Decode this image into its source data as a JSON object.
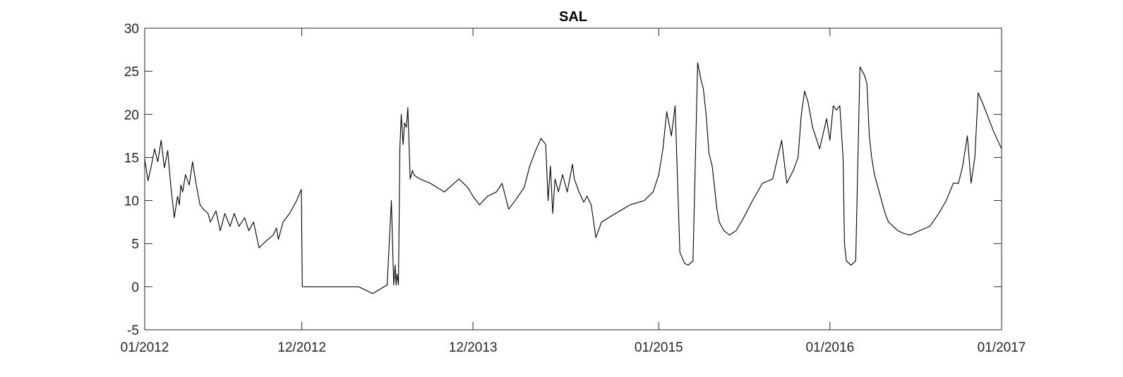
{
  "chart_data": {
    "type": "line",
    "title": "SAL",
    "xlabel": "",
    "ylabel": "",
    "xlim": [
      "2012-01-01",
      "2017-01-01"
    ],
    "ylim": [
      -5,
      30
    ],
    "grid": false,
    "legend": "none",
    "line_color": "#000000",
    "x_tick_labels": [
      "01/2012",
      "12/2012",
      "12/2013",
      "01/2015",
      "01/2016",
      "01/2017"
    ],
    "x_tick_dates": [
      "2012-01-01",
      "2012-12-01",
      "2013-12-01",
      "2015-01-01",
      "2016-01-01",
      "2017-01-01"
    ],
    "y_ticks": [
      -5,
      0,
      5,
      10,
      15,
      20,
      25,
      30
    ],
    "series": [
      {
        "x": [
          "2012-01-01",
          "2012-01-08",
          "2012-01-15",
          "2012-01-22",
          "2012-01-29",
          "2012-02-05",
          "2012-02-12",
          "2012-02-19",
          "2012-02-26",
          "2012-03-04",
          "2012-03-11",
          "2012-03-15",
          "2012-03-18",
          "2012-03-22",
          "2012-03-28",
          "2012-04-05",
          "2012-04-12",
          "2012-04-20",
          "2012-04-28",
          "2012-05-05",
          "2012-05-15",
          "2012-05-20",
          "2012-06-01",
          "2012-06-10",
          "2012-06-20",
          "2012-07-01",
          "2012-07-10",
          "2012-07-20",
          "2012-08-01",
          "2012-08-10",
          "2012-08-20",
          "2012-09-01",
          "2012-09-10",
          "2012-09-20",
          "2012-10-01",
          "2012-10-08",
          "2012-10-12",
          "2012-10-22",
          "2012-11-05",
          "2012-11-20",
          "2012-11-30",
          "2012-12-02",
          "2012-12-15",
          "2013-01-01",
          "2013-02-01",
          "2013-03-01",
          "2013-04-01",
          "2013-05-01",
          "2013-06-01",
          "2013-06-10",
          "2013-06-15",
          "2013-06-18",
          "2013-06-20",
          "2013-06-22",
          "2013-06-25",
          "2013-06-28",
          "2013-07-01",
          "2013-07-05",
          "2013-07-08",
          "2013-07-12",
          "2013-07-15",
          "2013-07-20",
          "2013-07-25",
          "2013-07-28",
          "2013-08-01",
          "2013-08-10",
          "2013-09-01",
          "2013-10-01",
          "2013-11-01",
          "2013-11-20",
          "2013-12-01",
          "2013-12-15",
          "2014-01-01",
          "2014-01-20",
          "2014-02-01",
          "2014-02-15",
          "2014-03-01",
          "2014-03-20",
          "2014-04-01",
          "2014-04-15",
          "2014-04-25",
          "2014-05-05",
          "2014-05-10",
          "2014-05-15",
          "2014-05-20",
          "2014-05-25",
          "2014-06-01",
          "2014-06-10",
          "2014-06-20",
          "2014-07-01",
          "2014-07-05",
          "2014-07-15",
          "2014-07-25",
          "2014-08-01",
          "2014-08-10",
          "2014-08-20",
          "2014-09-01",
          "2014-10-01",
          "2014-11-01",
          "2014-12-01",
          "2014-12-20",
          "2015-01-01",
          "2015-01-10",
          "2015-01-18",
          "2015-01-28",
          "2015-02-05",
          "2015-02-15",
          "2015-02-25",
          "2015-03-05",
          "2015-03-15",
          "2015-03-25",
          "2015-04-01",
          "2015-04-06",
          "2015-04-12",
          "2015-04-18",
          "2015-04-25",
          "2015-05-01",
          "2015-05-05",
          "2015-05-10",
          "2015-05-15",
          "2015-05-20",
          "2015-06-01",
          "2015-06-15",
          "2015-07-01",
          "2015-07-20",
          "2015-08-10",
          "2015-09-01",
          "2015-09-20",
          "2015-10-01",
          "2015-10-15",
          "2015-10-25",
          "2015-11-01",
          "2015-11-08",
          "2015-11-15",
          "2015-11-25",
          "2015-12-10",
          "2015-12-25",
          "2016-01-01",
          "2016-01-08",
          "2016-01-15",
          "2016-01-22",
          "2016-01-29",
          "2016-02-01",
          "2016-02-05",
          "2016-02-15",
          "2016-02-25",
          "2016-03-05",
          "2016-03-15",
          "2016-03-20",
          "2016-03-25",
          "2016-03-30",
          "2016-04-05",
          "2016-04-15",
          "2016-04-25",
          "2016-05-01",
          "2016-05-05",
          "2016-05-15",
          "2016-05-25",
          "2016-06-05",
          "2016-06-20",
          "2016-07-10",
          "2016-08-01",
          "2016-08-20",
          "2016-09-05",
          "2016-09-20",
          "2016-10-01",
          "2016-10-10",
          "2016-10-20",
          "2016-10-28",
          "2016-11-05",
          "2016-11-12",
          "2016-11-20",
          "2016-12-01",
          "2016-12-15",
          "2017-01-01"
        ],
        "y": [
          14.8,
          12.3,
          14,
          16,
          14.5,
          17,
          13.8,
          15.8,
          11.5,
          8,
          10.5,
          9.5,
          11.8,
          11,
          13,
          11.8,
          14.5,
          11.8,
          9.5,
          9,
          8.5,
          7.5,
          8.8,
          6.5,
          8.5,
          7,
          8.5,
          7,
          8,
          6.5,
          7.5,
          4.5,
          5,
          5.5,
          6,
          6.8,
          5.5,
          7.5,
          8.5,
          10,
          11.3,
          0,
          0,
          0,
          0,
          0,
          0,
          -0.8,
          0.2,
          10,
          0.2,
          2.5,
          0.2,
          1.5,
          0.2,
          16,
          20,
          16.5,
          19,
          18.5,
          20.8,
          12.5,
          13.5,
          13,
          12.8,
          12.5,
          12,
          11,
          12.5,
          11.5,
          10.5,
          9.5,
          10.5,
          11,
          12,
          9,
          10,
          11.5,
          14,
          16,
          17.2,
          16.5,
          10,
          14,
          8.5,
          12.5,
          11,
          13,
          11,
          14.2,
          12.5,
          11,
          9.8,
          10.5,
          9.5,
          5.7,
          7.5,
          8.5,
          9.5,
          10,
          11,
          13,
          16,
          20.3,
          17.5,
          21,
          4,
          2.7,
          2.5,
          3,
          26,
          24,
          23,
          20,
          15.5,
          14,
          11,
          9,
          7.5,
          7,
          6.5,
          6,
          6.5,
          8,
          10,
          12,
          12.5,
          17,
          12,
          13.5,
          15,
          20,
          22.7,
          21.5,
          18.5,
          16,
          19.5,
          17,
          21,
          20.5,
          21,
          15,
          5,
          3,
          2.5,
          3,
          25.5,
          24.5,
          23.5,
          17.5,
          15,
          13,
          11,
          9,
          8,
          7.5,
          7,
          6.5,
          6.2,
          6,
          6.5,
          7,
          8.5,
          10,
          12,
          12,
          14,
          17.5,
          12,
          15,
          22.5,
          21.5,
          20,
          18,
          16
        ]
      }
    ]
  }
}
